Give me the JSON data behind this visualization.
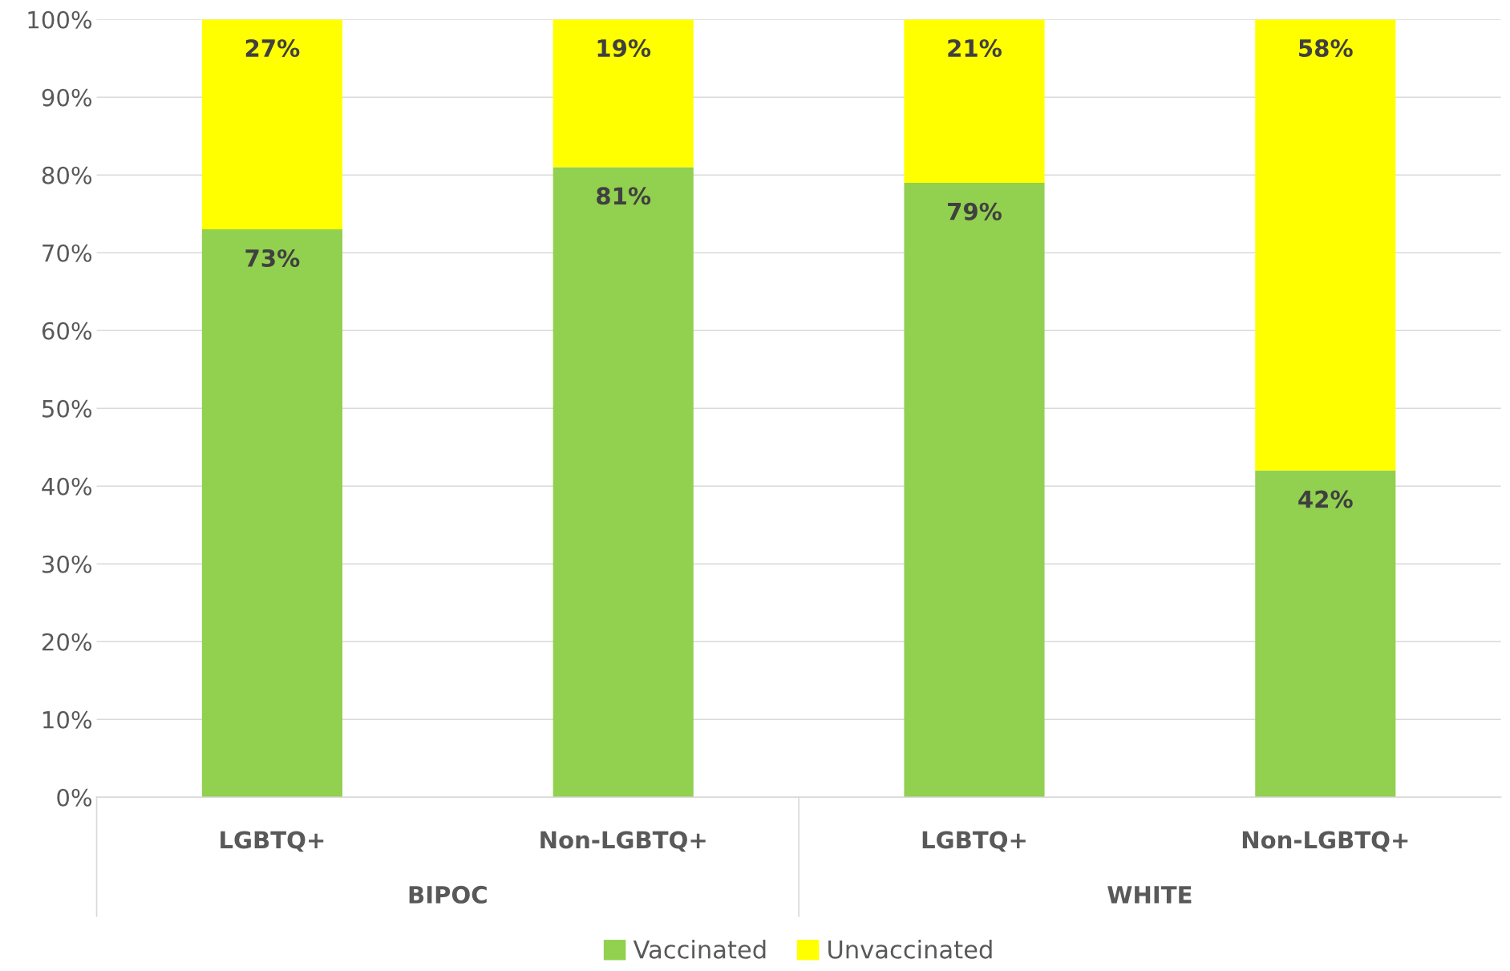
{
  "chart_data": {
    "type": "bar",
    "stacked": true,
    "categories": [
      "LGBTQ+",
      "Non-LGBTQ+",
      "LGBTQ+",
      "Non-LGBTQ+"
    ],
    "series": [
      {
        "name": "Vaccinated",
        "color": "#92d050",
        "values": [
          73,
          81,
          79,
          42
        ],
        "value_labels": [
          "73%",
          "81%",
          "79%",
          "42%"
        ]
      },
      {
        "name": "Unvaccinated",
        "color": "#ffff00",
        "values": [
          27,
          19,
          21,
          58
        ],
        "value_labels": [
          "27%",
          "19%",
          "21%",
          "58%"
        ]
      }
    ],
    "ylim": [
      0,
      100
    ],
    "yticks": [
      {
        "value": 0,
        "label": "0%"
      },
      {
        "value": 10,
        "label": "10%"
      },
      {
        "value": 20,
        "label": "20%"
      },
      {
        "value": 30,
        "label": "30%"
      },
      {
        "value": 40,
        "label": "40%"
      },
      {
        "value": 50,
        "label": "50%"
      },
      {
        "value": 60,
        "label": "60%"
      },
      {
        "value": 70,
        "label": "70%"
      },
      {
        "value": 80,
        "label": "80%"
      },
      {
        "value": 90,
        "label": "90%"
      },
      {
        "value": 100,
        "label": "100%"
      }
    ],
    "grid": "y",
    "legend": "bottom",
    "annotations": [
      "BIPOC",
      "WHITE"
    ]
  }
}
